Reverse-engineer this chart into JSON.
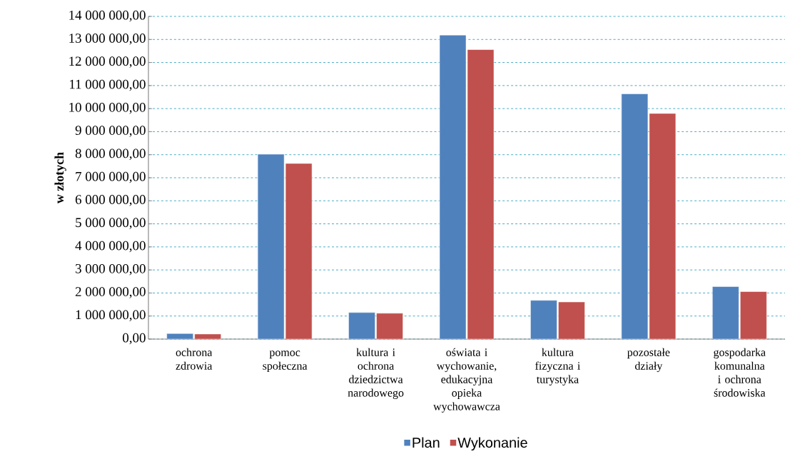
{
  "chart_data": {
    "type": "bar",
    "ylabel": "w złotych",
    "categories": [
      "ochrona zdrowia",
      "pomoc społeczna",
      "kultura i ochrona dziedzictwa narodowego",
      "oświata i wychowanie, edukacyjna opieka wychowawcza",
      "kultura fizyczna i turystyka",
      "pozostałe działy",
      "gospodarka komunalna i ochrona środowiska"
    ],
    "series": [
      {
        "name": "Plan",
        "color": "#4f81bd",
        "values": [
          240000,
          8020000,
          1150000,
          13190000,
          1680000,
          10640000,
          2280000
        ]
      },
      {
        "name": "Wykonanie",
        "color": "#c0504d",
        "values": [
          220000,
          7620000,
          1120000,
          12560000,
          1610000,
          9790000,
          2060000
        ]
      }
    ],
    "ylim": [
      0,
      14000000
    ],
    "yticks": [
      {
        "value": 0,
        "label": "0,00"
      },
      {
        "value": 1000000,
        "label": "1 000 000,00"
      },
      {
        "value": 2000000,
        "label": "2 000 000,00"
      },
      {
        "value": 3000000,
        "label": "3 000 000,00"
      },
      {
        "value": 4000000,
        "label": "4 000 000,00"
      },
      {
        "value": 5000000,
        "label": "5 000 000,00"
      },
      {
        "value": 6000000,
        "label": "6 000 000,00"
      },
      {
        "value": 7000000,
        "label": "7 000 000,00"
      },
      {
        "value": 8000000,
        "label": "8 000 000,00"
      },
      {
        "value": 9000000,
        "label": "9 000 000,00"
      },
      {
        "value": 10000000,
        "label": "10 000 000,00"
      },
      {
        "value": 11000000,
        "label": "11 000 000,00"
      },
      {
        "value": 12000000,
        "label": "12 000 000,00"
      },
      {
        "value": 13000000,
        "label": "13 000 000,00"
      },
      {
        "value": 14000000,
        "label": "14 000 000,00"
      }
    ],
    "grid": "y",
    "legend": "bottom"
  }
}
